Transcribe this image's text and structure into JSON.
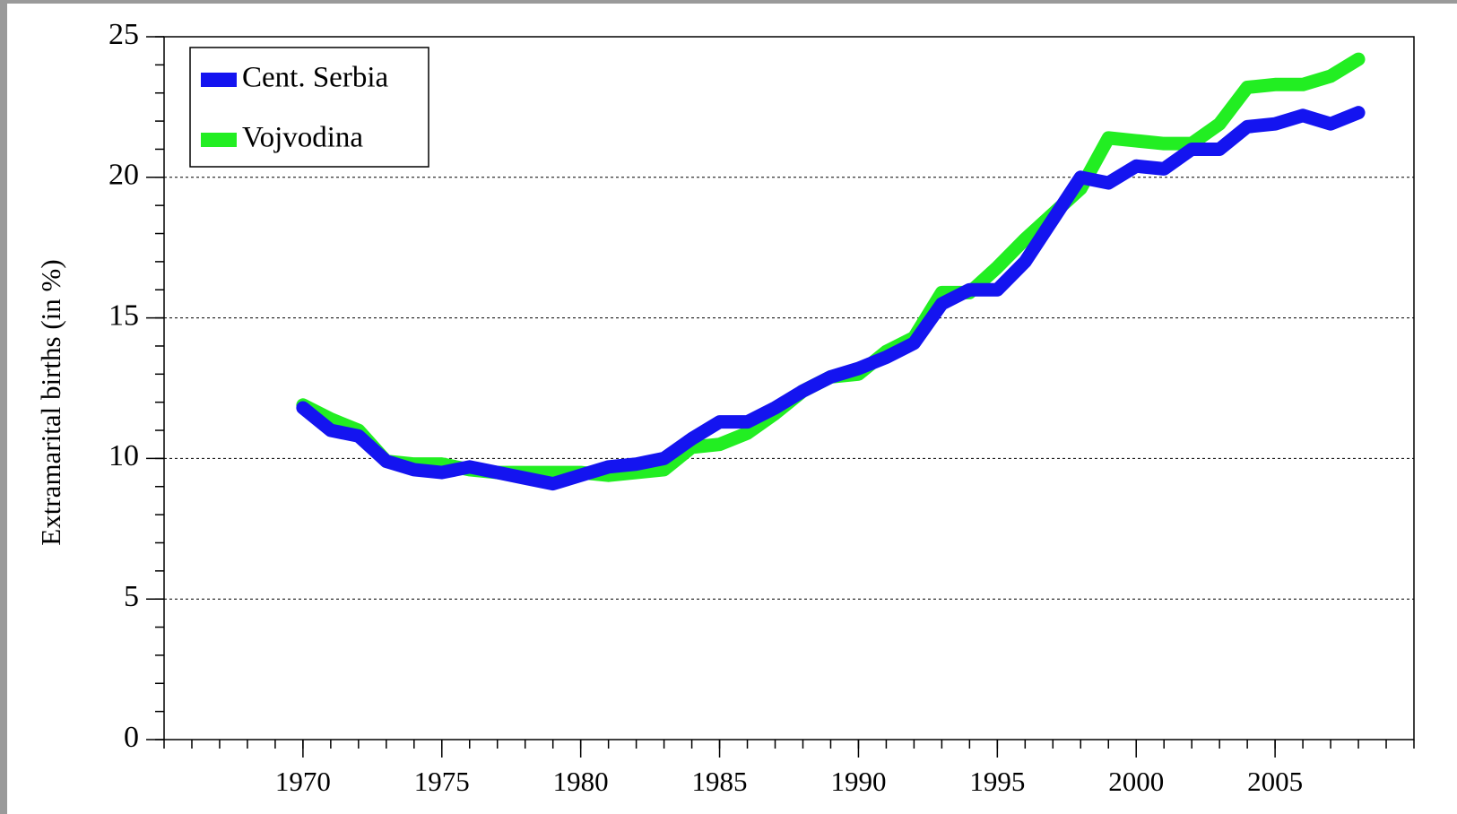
{
  "chart_data": {
    "type": "line",
    "y_label": "Extramarital births (in %)",
    "x": [
      1970,
      1971,
      1972,
      1973,
      1974,
      1975,
      1976,
      1977,
      1978,
      1979,
      1980,
      1981,
      1982,
      1983,
      1984,
      1985,
      1986,
      1987,
      1988,
      1989,
      1990,
      1991,
      1992,
      1993,
      1994,
      1995,
      1996,
      1997,
      1998,
      1999,
      2000,
      2001,
      2002,
      2003,
      2004,
      2005,
      2006,
      2007,
      2008
    ],
    "series": [
      {
        "name": "Cent. Serbia",
        "color": "#1414f0",
        "values": [
          11.8,
          11.0,
          10.8,
          9.9,
          9.6,
          9.5,
          9.7,
          9.5,
          9.3,
          9.1,
          9.4,
          9.7,
          9.8,
          10.0,
          10.7,
          11.3,
          11.3,
          11.8,
          12.4,
          12.9,
          13.2,
          13.6,
          14.1,
          15.5,
          16.0,
          16.0,
          17.0,
          18.5,
          20.0,
          19.8,
          20.4,
          20.3,
          21.0,
          21.0,
          21.8,
          21.9,
          22.2,
          21.9,
          22.3
        ]
      },
      {
        "name": "Vojvodina",
        "color": "#22ee22",
        "values": [
          11.9,
          11.4,
          11.0,
          9.9,
          9.8,
          9.8,
          9.6,
          9.5,
          9.5,
          9.5,
          9.5,
          9.4,
          9.5,
          9.6,
          10.4,
          10.5,
          10.9,
          11.6,
          12.4,
          12.9,
          13.0,
          13.8,
          14.3,
          15.9,
          15.9,
          16.8,
          17.8,
          18.7,
          19.6,
          21.4,
          21.3,
          21.2,
          21.2,
          21.9,
          23.2,
          23.3,
          23.3,
          23.6,
          24.2
        ]
      }
    ],
    "xlim": [
      1965,
      2010
    ],
    "xticks": [
      1970,
      1975,
      1980,
      1985,
      1990,
      1995,
      2000,
      2005
    ],
    "ylim": [
      0,
      25
    ],
    "yticks": [
      0,
      5,
      10,
      15,
      20,
      25
    ],
    "grid": true,
    "legend": "upper left"
  }
}
